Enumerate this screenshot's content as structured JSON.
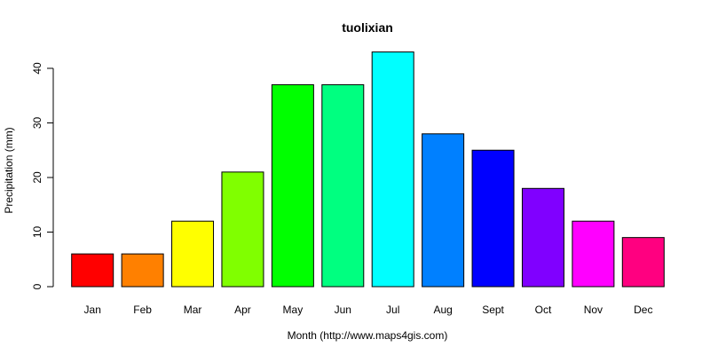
{
  "chart_data": {
    "type": "bar",
    "title": "tuolixian",
    "xlabel": "Month (http://www.maps4gis.com)",
    "ylabel": "Precipitation (mm)",
    "ylim": [
      0,
      40
    ],
    "yticks": [
      0,
      10,
      20,
      30,
      40
    ],
    "categories": [
      "Jan",
      "Feb",
      "Mar",
      "Apr",
      "May",
      "Jun",
      "Jul",
      "Aug",
      "Sept",
      "Oct",
      "Nov",
      "Dec"
    ],
    "values": [
      6,
      6,
      12,
      21,
      37,
      37,
      43,
      28,
      25,
      18,
      12,
      9
    ],
    "colors": [
      "#ff0000",
      "#ff8000",
      "#ffff00",
      "#80ff00",
      "#00ff00",
      "#00ff80",
      "#00ffff",
      "#0080ff",
      "#0000ff",
      "#8000ff",
      "#ff00ff",
      "#ff0080"
    ],
    "grid": false,
    "legend": "none"
  }
}
